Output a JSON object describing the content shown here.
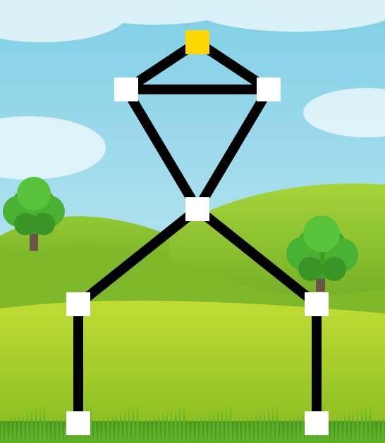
{
  "scene": {
    "sky_top_color": "#7fcfe6",
    "sky_bottom_color": "#d8f0f6",
    "hill_far_color": "#7fbf2a",
    "hill_mid_color": "#93c833",
    "field_color": "#b3d52c",
    "grass_color": "#4d9a21",
    "tree_canopy_color": "#49b233",
    "tree_trunk_color": "#6a5545"
  },
  "puzzle": {
    "type": "one-stroke-draw",
    "edge_color": "#000000",
    "node_color": "#ffffff",
    "start_node_color": "#ffd700",
    "start_node_id": "top",
    "nodes": [
      {
        "id": "top",
        "is_start": true
      },
      {
        "id": "upper-left"
      },
      {
        "id": "upper-right"
      },
      {
        "id": "center"
      },
      {
        "id": "lower-left"
      },
      {
        "id": "lower-right"
      },
      {
        "id": "bottom-left"
      },
      {
        "id": "bottom-right"
      }
    ],
    "edges": [
      [
        "top",
        "upper-left"
      ],
      [
        "top",
        "upper-right"
      ],
      [
        "upper-left",
        "upper-right"
      ],
      [
        "upper-left",
        "center"
      ],
      [
        "upper-right",
        "center"
      ],
      [
        "center",
        "lower-left"
      ],
      [
        "center",
        "lower-right"
      ],
      [
        "lower-left",
        "bottom-left"
      ],
      [
        "lower-right",
        "bottom-right"
      ]
    ]
  }
}
